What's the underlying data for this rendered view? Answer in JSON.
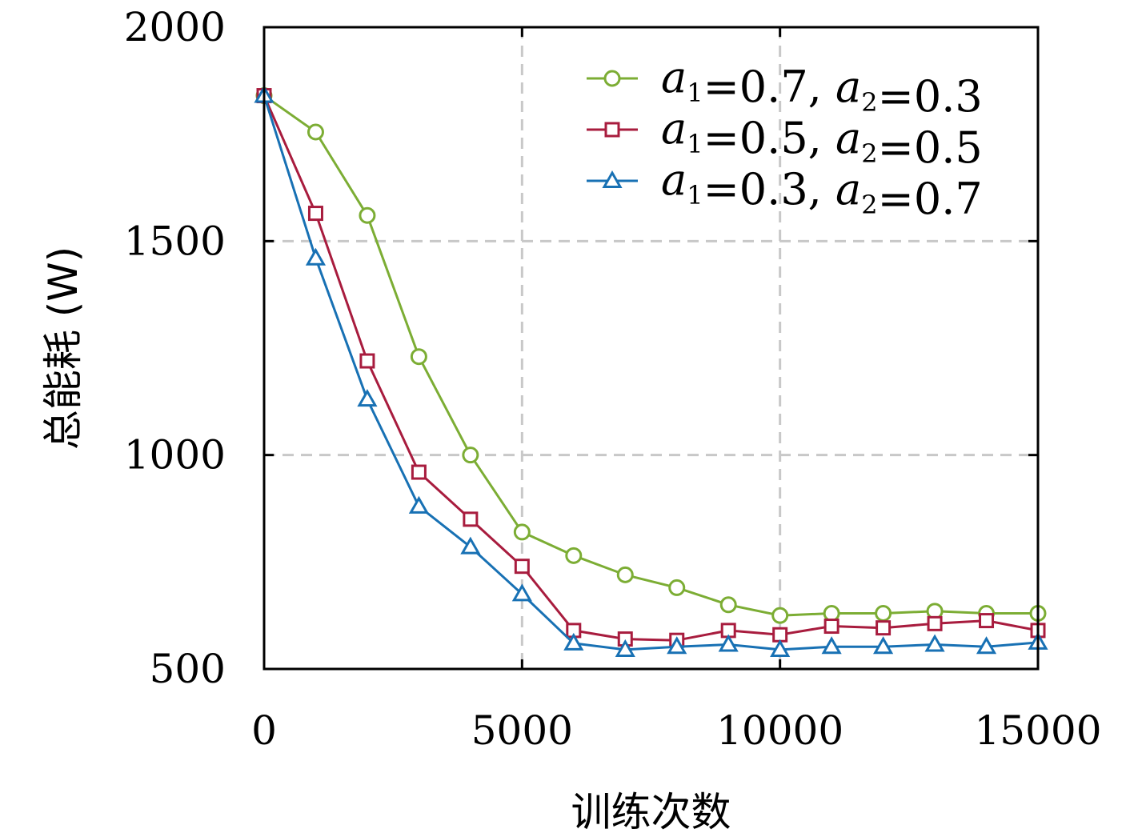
{
  "chart_data": {
    "type": "line",
    "xlabel": "训练次数",
    "ylabel": "总能耗 (W)",
    "xlim": [
      0,
      15000
    ],
    "ylim": [
      500,
      2000
    ],
    "x_ticks": [
      "0",
      "5000",
      "10000",
      "15000"
    ],
    "y_ticks": [
      "500",
      "1000",
      "1500",
      "2000"
    ],
    "grid": true,
    "legend_position": "top-right",
    "x": [
      0,
      1000,
      2000,
      3000,
      4000,
      5000,
      6000,
      7000,
      8000,
      9000,
      10000,
      11000,
      12000,
      13000,
      14000,
      15000
    ],
    "series": [
      {
        "name": "a1=0.7, a2=0.3",
        "legend": {
          "v1": "a",
          "s1": "1",
          "val1": "=0.7,",
          "v2": "a",
          "s2": "2",
          "val2": "=0.3"
        },
        "color": "#7cad34",
        "marker": "circle",
        "values": [
          1840,
          1755,
          1560,
          1230,
          1000,
          820,
          765,
          720,
          690,
          650,
          625,
          630,
          630,
          635,
          630,
          630
        ]
      },
      {
        "name": "a1=0.5, a2=0.5",
        "legend": {
          "v1": "a",
          "s1": "1",
          "val1": "=0.5,",
          "v2": "a",
          "s2": "2",
          "val2": "=0.5"
        },
        "color": "#a81c3e",
        "marker": "square",
        "values": [
          1840,
          1565,
          1220,
          960,
          850,
          740,
          590,
          570,
          567,
          590,
          580,
          600,
          596,
          606,
          613,
          590
        ]
      },
      {
        "name": "a1=0.3, a2=0.7",
        "legend": {
          "v1": "a",
          "s1": "1",
          "val1": "=0.3,",
          "v2": "a",
          "s2": "2",
          "val2": "=0.7"
        },
        "color": "#1871b4",
        "marker": "triangle",
        "values": [
          1840,
          1460,
          1130,
          880,
          785,
          675,
          560,
          545,
          552,
          557,
          545,
          552,
          552,
          557,
          552,
          562
        ]
      }
    ]
  }
}
